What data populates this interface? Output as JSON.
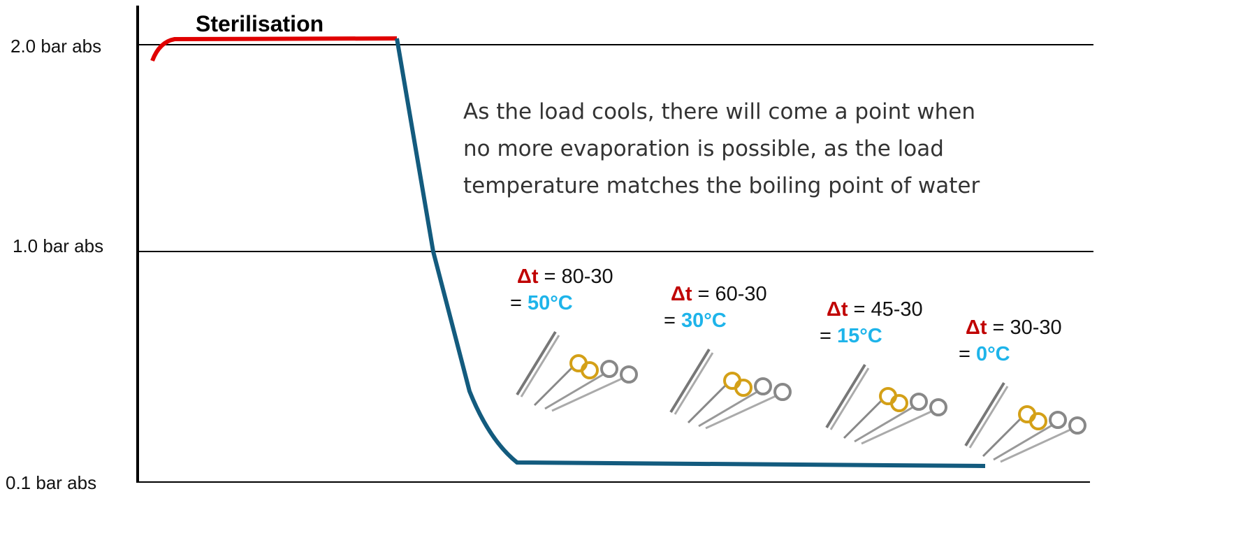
{
  "axis_labels": [
    "2.0 bar abs",
    "1.0 bar abs",
    "0.1 bar abs"
  ],
  "phase_label": "Sterilisation",
  "note_lines": [
    "As the load cools, there will come a point when",
    "no more evaporation is possible, as the load",
    "temperature matches the boiling point of water"
  ],
  "deltas": [
    {
      "symbol": "Δt",
      "expression": "= 80-30",
      "result_prefix": "=",
      "result": "50°C"
    },
    {
      "symbol": "Δt",
      "expression": "= 60-30",
      "result_prefix": "=",
      "result": "30°C"
    },
    {
      "symbol": "Δt",
      "expression": "= 45-30",
      "result_prefix": "=",
      "result": "15°C"
    },
    {
      "symbol": "Δt",
      "expression": "= 30-30",
      "result_prefix": "=",
      "result": "0°C"
    }
  ]
}
